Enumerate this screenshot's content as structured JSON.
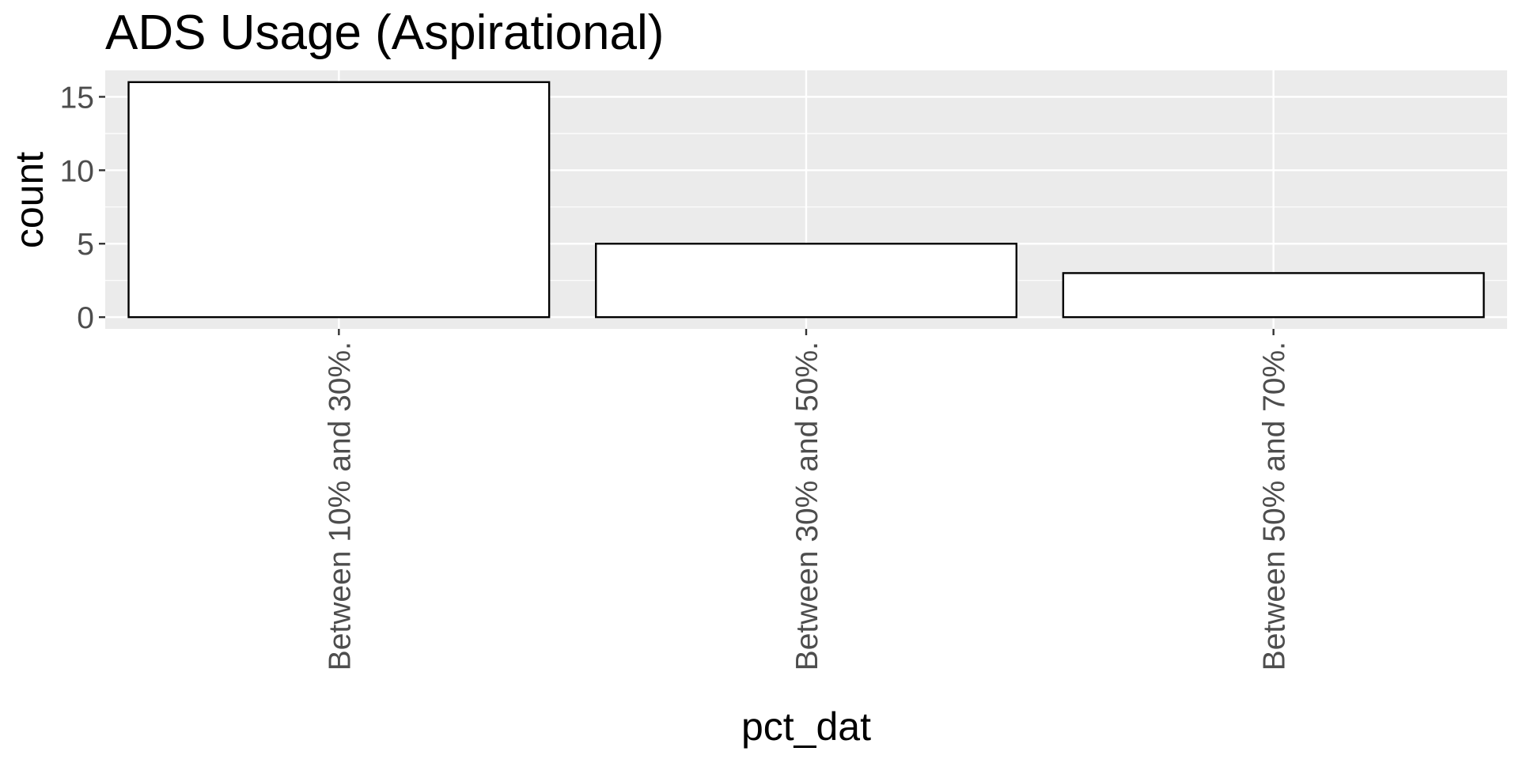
{
  "chart_data": {
    "type": "bar",
    "title": "ADS Usage (Aspirational)",
    "xlabel": "pct_dat",
    "ylabel": "count",
    "categories": [
      "Between 10% and 30%.",
      "Between 30% and 50%.",
      "Between 50% and 70%."
    ],
    "values": [
      16,
      5,
      3
    ],
    "ylim": [
      -0.8,
      16.8
    ],
    "yticks": [
      0,
      5,
      10,
      15
    ],
    "yminor": [
      2.5,
      7.5,
      12.5
    ],
    "grid": true,
    "colors": {
      "panel": "#ebebeb",
      "bar_fill": "#ffffff",
      "bar_stroke": "#000000",
      "text": "#4d4d4d"
    }
  }
}
